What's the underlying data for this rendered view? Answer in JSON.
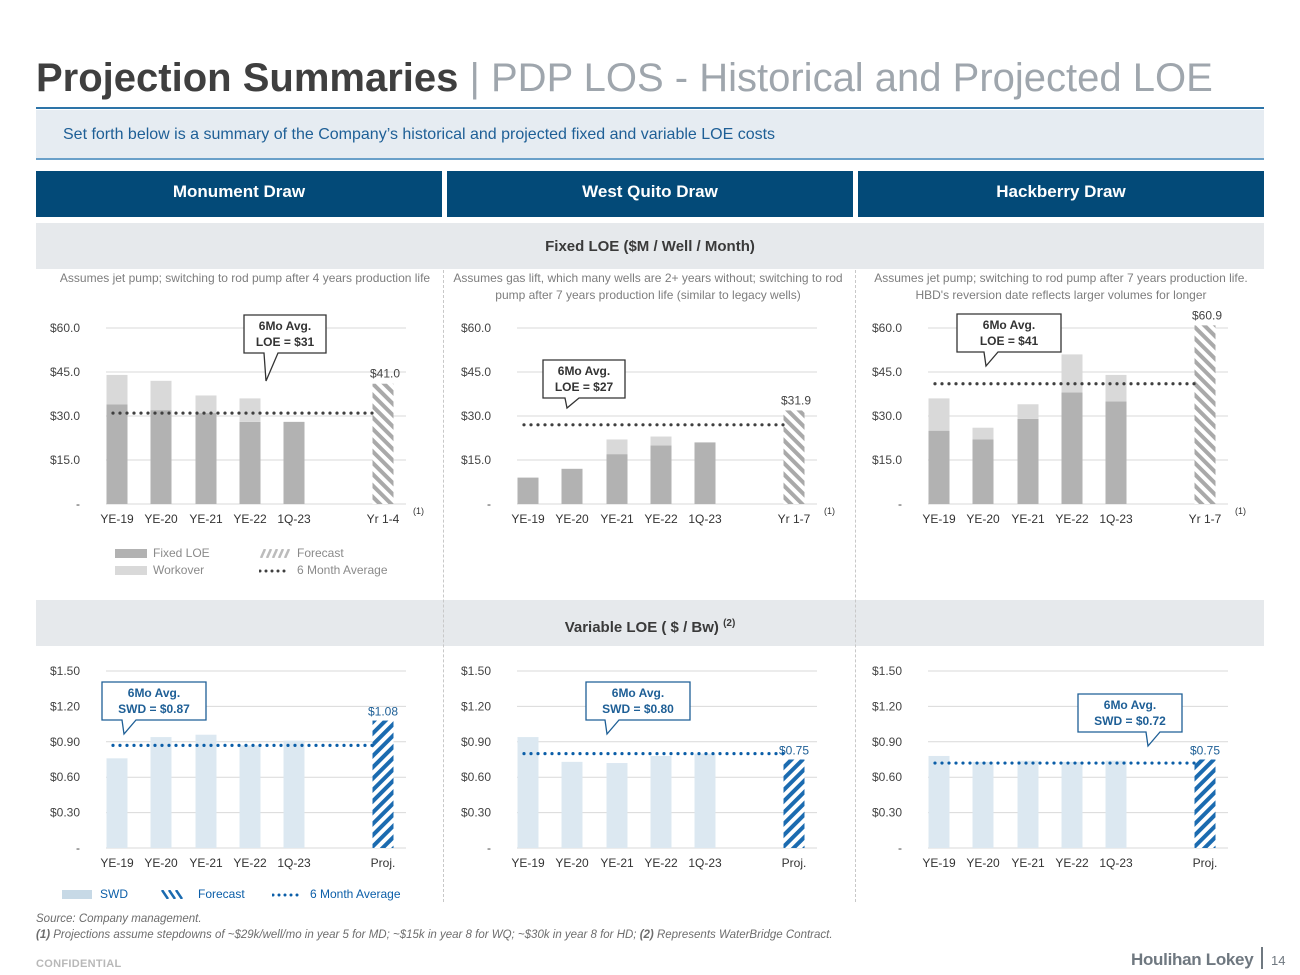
{
  "header": {
    "title_main": "Projection Summaries",
    "title_sep": " | ",
    "title_sub": "PDP LOS - Historical and Projected LOE",
    "intro": "Set forth below is a summary of the Company’s historical and projected fixed and variable LOE costs"
  },
  "columns": [
    {
      "label": "Monument Draw"
    },
    {
      "label": "West Quito Draw"
    },
    {
      "label": "Hackberry Draw"
    }
  ],
  "sections": {
    "fixed_title": "Fixed LOE ($M / Well / Month)",
    "variable_title": "Variable LOE ( $ / Bw)",
    "variable_sup": "(2)"
  },
  "notes": [
    "Assumes jet pump; switching to rod pump after 4 years production life",
    "Assumes gas lift, which many wells are 2+ years without; switching to rod pump after 7 years production life (similar to legacy wells)",
    "Assumes jet pump; switching to rod pump after 7 years production life. HBD's reversion date reflects larger volumes for longer"
  ],
  "legend_fixed": {
    "fixed": "Fixed LOE",
    "workover": "Workover",
    "forecast": "Forecast",
    "avg": "6 Month Average"
  },
  "legend_variable": {
    "swd": "SWD",
    "forecast": "Forecast",
    "avg": "6 Month Average"
  },
  "colors": {
    "fixed": "#b2b2b2",
    "workover": "#d9d9d9",
    "swd": "#dce8f1",
    "swd_forecast": "#1b6bb0",
    "avg_fixed": "#3f3f3f",
    "avg_variable": "#0b5ea8",
    "callout_border": "#1e5f96",
    "header_bg": "#034a78"
  },
  "chart_data": [
    {
      "type": "bar",
      "id": "fixed-md",
      "stacked": true,
      "categories": [
        "YE-19",
        "YE-20",
        "YE-21",
        "YE-22",
        "1Q-23",
        "Yr 1-4"
      ],
      "footnote": "(1)",
      "ylim": [
        0,
        60
      ],
      "yticks": [
        "-",
        "$15.0",
        "$30.0",
        "$45.0",
        "$60.0"
      ],
      "series": [
        {
          "name": "Fixed LOE",
          "values": [
            34,
            32,
            31,
            28,
            28,
            null
          ]
        },
        {
          "name": "Workover",
          "values": [
            10,
            10,
            6,
            8,
            0,
            null
          ]
        },
        {
          "name": "Forecast",
          "values": [
            null,
            null,
            null,
            null,
            null,
            41.0
          ]
        }
      ],
      "forecast_label": "$41.0",
      "avg": 31,
      "callout_line1": "6Mo Avg.",
      "callout_line2": "LOE = $31"
    },
    {
      "type": "bar",
      "id": "fixed-wq",
      "stacked": true,
      "categories": [
        "YE-19",
        "YE-20",
        "YE-21",
        "YE-22",
        "1Q-23",
        "Yr 1-7"
      ],
      "footnote": "(1)",
      "ylim": [
        0,
        60
      ],
      "yticks": [
        "-",
        "$15.0",
        "$30.0",
        "$45.0",
        "$60.0"
      ],
      "series": [
        {
          "name": "Fixed LOE",
          "values": [
            9,
            12,
            17,
            20,
            21,
            null
          ]
        },
        {
          "name": "Workover",
          "values": [
            0,
            0,
            5,
            3,
            0,
            null
          ]
        },
        {
          "name": "Forecast",
          "values": [
            null,
            null,
            null,
            null,
            null,
            31.9
          ]
        }
      ],
      "forecast_label": "$31.9",
      "avg": 27,
      "callout_line1": "6Mo Avg.",
      "callout_line2": "LOE = $27"
    },
    {
      "type": "bar",
      "id": "fixed-hbd",
      "stacked": true,
      "categories": [
        "YE-19",
        "YE-20",
        "YE-21",
        "YE-22",
        "1Q-23",
        "Yr 1-7"
      ],
      "footnote": "(1)",
      "ylim": [
        0,
        60
      ],
      "yticks": [
        "-",
        "$15.0",
        "$30.0",
        "$45.0",
        "$60.0"
      ],
      "series": [
        {
          "name": "Fixed LOE",
          "values": [
            25,
            22,
            29,
            38,
            35,
            null
          ]
        },
        {
          "name": "Workover",
          "values": [
            11,
            4,
            5,
            13,
            9,
            null
          ]
        },
        {
          "name": "Forecast",
          "values": [
            null,
            null,
            null,
            null,
            null,
            60.9
          ]
        }
      ],
      "forecast_label": "$60.9",
      "avg": 41,
      "callout_line1": "6Mo Avg.",
      "callout_line2": "LOE = $41"
    },
    {
      "type": "bar",
      "id": "var-md",
      "categories": [
        "YE-19",
        "YE-20",
        "YE-21",
        "YE-22",
        "1Q-23",
        "Proj."
      ],
      "ylim": [
        0,
        1.5
      ],
      "yticks": [
        "-",
        "$0.30",
        "$0.60",
        "$0.90",
        "$1.20",
        "$1.50"
      ],
      "series": [
        {
          "name": "SWD",
          "values": [
            0.76,
            0.94,
            0.96,
            0.87,
            0.91,
            null
          ]
        },
        {
          "name": "Forecast",
          "values": [
            null,
            null,
            null,
            null,
            null,
            1.08
          ]
        }
      ],
      "forecast_label": "$1.08",
      "avg": 0.87,
      "callout_line1": "6Mo Avg.",
      "callout_line2": "SWD = $0.87"
    },
    {
      "type": "bar",
      "id": "var-wq",
      "categories": [
        "YE-19",
        "YE-20",
        "YE-21",
        "YE-22",
        "1Q-23",
        "Proj."
      ],
      "ylim": [
        0,
        1.5
      ],
      "yticks": [
        "-",
        "$0.30",
        "$0.60",
        "$0.90",
        "$1.20",
        "$1.50"
      ],
      "series": [
        {
          "name": "SWD",
          "values": [
            0.94,
            0.73,
            0.72,
            0.78,
            0.8,
            null
          ]
        },
        {
          "name": "Forecast",
          "values": [
            null,
            null,
            null,
            null,
            null,
            0.75
          ]
        }
      ],
      "forecast_label": "$0.75",
      "avg": 0.8,
      "callout_line1": "6Mo Avg.",
      "callout_line2": "SWD = $0.80"
    },
    {
      "type": "bar",
      "id": "var-hbd",
      "categories": [
        "YE-19",
        "YE-20",
        "YE-21",
        "YE-22",
        "1Q-23",
        "Proj."
      ],
      "ylim": [
        0,
        1.5
      ],
      "yticks": [
        "-",
        "$0.30",
        "$0.60",
        "$0.90",
        "$1.20",
        "$1.50"
      ],
      "series": [
        {
          "name": "SWD",
          "values": [
            0.78,
            0.73,
            0.74,
            0.73,
            0.74,
            null
          ]
        },
        {
          "name": "Forecast",
          "values": [
            null,
            null,
            null,
            null,
            null,
            0.75
          ]
        }
      ],
      "forecast_label": "$0.75",
      "avg": 0.72,
      "callout_line1": "6Mo Avg.",
      "callout_line2": "SWD = $0.72"
    }
  ],
  "footer": {
    "source": "Source: Company management.",
    "fn1_mark": "(1)",
    "fn1_text": " Projections assume stepdowns of ~$29k/well/mo in year 5 for MD; ~$15k in year 8 for WQ; ~$30k in year 8 for HD;",
    "fn2_mark": " (2)",
    "fn2_text": " Represents WaterBridge Contract.",
    "confidential": "CONFIDENTIAL",
    "logo": "Houlihan Lokey",
    "page": "14"
  }
}
